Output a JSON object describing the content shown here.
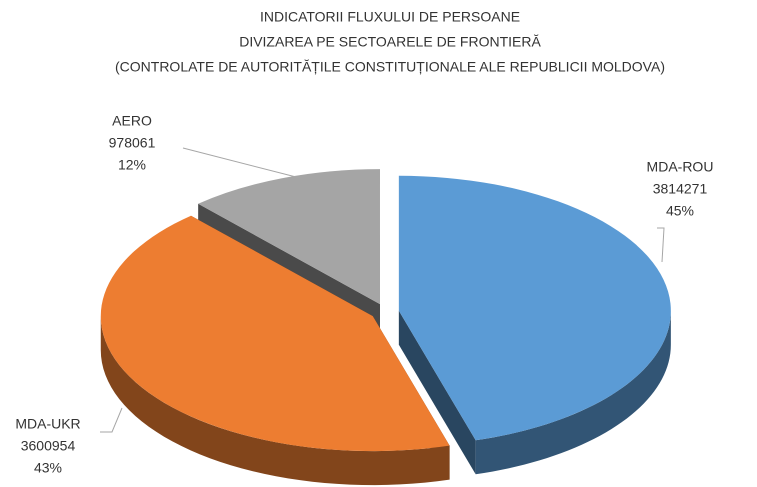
{
  "chart_data": {
    "type": "pie3d",
    "title": [
      "INDICATORII FLUXULUI DE PERSOANE",
      "DIVIZAREA PE SECTOARELE DE FRONTIERĂ",
      "(CONTROLATE DE AUTORITĂȚILE CONSTITUȚIONALE ALE REPUBLICII MOLDOVA)"
    ],
    "categories": [
      "MDA-ROU",
      "MDA-UKR",
      "AERO"
    ],
    "values": [
      3814271,
      3600954,
      978061
    ],
    "percent_labels": [
      "45%",
      "43%",
      "12%"
    ],
    "colors": [
      "#5b9bd5",
      "#ed7d31",
      "#a5a5a5"
    ]
  }
}
